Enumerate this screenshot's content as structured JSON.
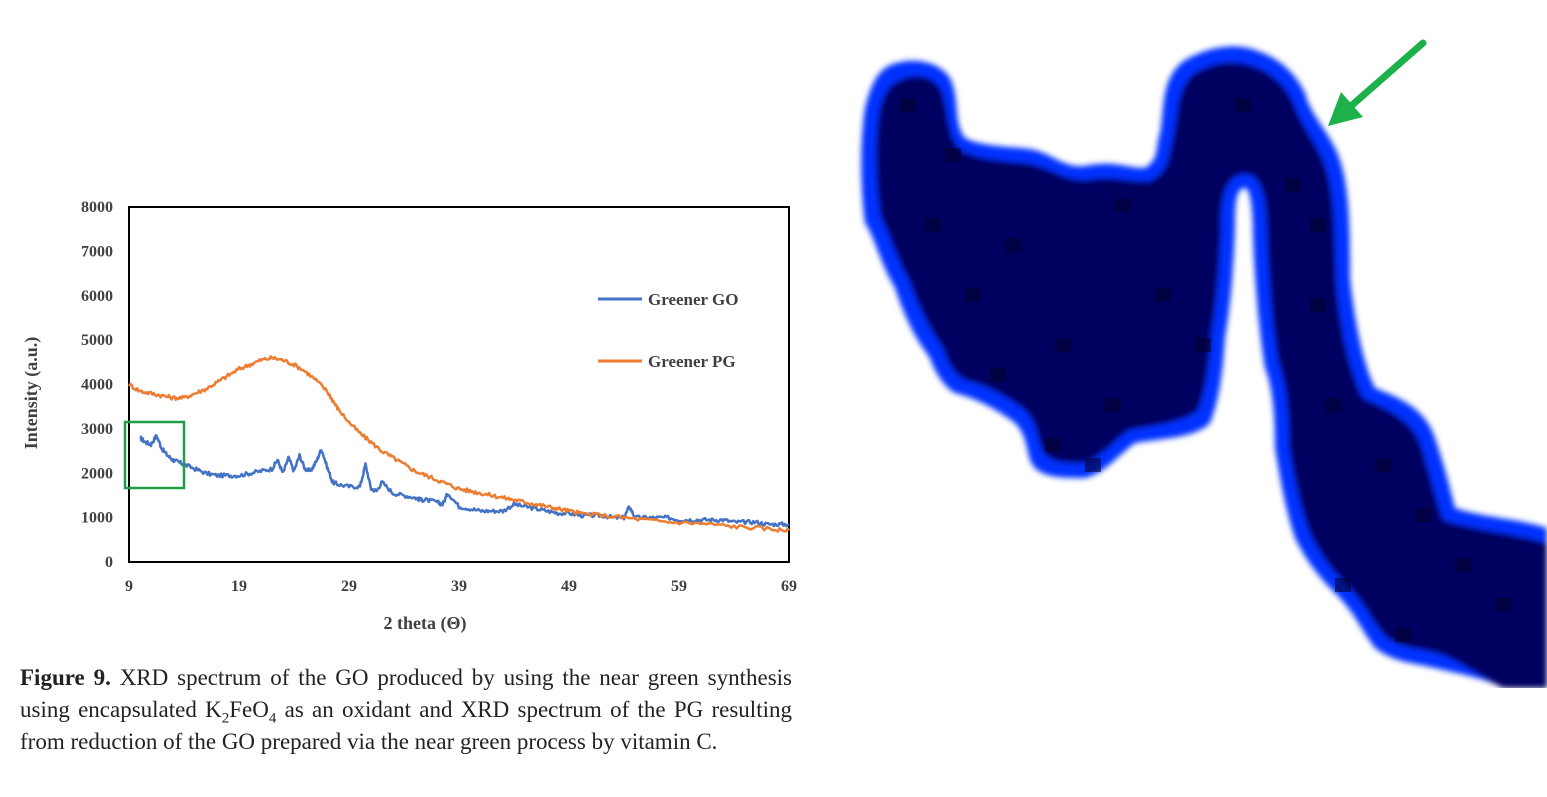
{
  "chart_data": {
    "type": "line",
    "xlabel": "2 theta (Θ)",
    "ylabel": "Intensity (a.u.)",
    "xlim": [
      9,
      69
    ],
    "ylim": [
      0,
      8000
    ],
    "x_ticks": [
      9,
      19,
      29,
      39,
      49,
      59,
      69
    ],
    "y_ticks": [
      0,
      1000,
      2000,
      3000,
      4000,
      5000,
      6000,
      7000,
      8000
    ],
    "legend_position": "right",
    "grid": false,
    "series": [
      {
        "name": "Greener GO",
        "color": "#4472C4",
        "x": [
          10,
          10.5,
          11,
          11.5,
          12,
          12.5,
          13,
          13.5,
          14,
          15,
          16,
          17,
          18,
          19,
          20,
          21,
          22,
          22.5,
          23,
          23.5,
          24,
          24.5,
          25,
          25.5,
          26,
          26.5,
          27,
          27.5,
          28,
          29,
          30,
          30.5,
          31,
          31.5,
          32,
          33,
          34,
          35,
          35.5,
          36,
          37,
          37.5,
          38,
          39,
          40,
          41,
          42,
          43,
          44,
          45,
          46,
          47,
          48,
          49,
          50,
          51,
          52,
          53,
          54,
          54.5,
          55,
          56,
          57,
          58,
          59,
          60,
          61,
          62,
          63,
          64,
          65,
          66,
          67,
          68,
          69
        ],
        "y": [
          2800,
          2700,
          2650,
          2850,
          2550,
          2400,
          2300,
          2250,
          2200,
          2100,
          2000,
          1950,
          1950,
          1950,
          2000,
          2050,
          2100,
          2300,
          2000,
          2350,
          2050,
          2400,
          2100,
          2050,
          2250,
          2550,
          2150,
          1800,
          1750,
          1700,
          1700,
          2200,
          1650,
          1600,
          1800,
          1550,
          1500,
          1450,
          1400,
          1400,
          1350,
          1300,
          1550,
          1250,
          1200,
          1150,
          1150,
          1150,
          1300,
          1250,
          1200,
          1150,
          1100,
          1100,
          1050,
          1050,
          1050,
          1000,
          1000,
          1250,
          1000,
          1000,
          1000,
          1000,
          950,
          950,
          950,
          950,
          950,
          900,
          900,
          900,
          850,
          850,
          850
        ]
      },
      {
        "name": "Greener PG",
        "color": "#ED7D31",
        "x": [
          9,
          10,
          11,
          12,
          13,
          14,
          15,
          16,
          17,
          18,
          19,
          20,
          21,
          22,
          23,
          24,
          25,
          26,
          27,
          27.5,
          28,
          29,
          30,
          31,
          32,
          33,
          34,
          35,
          36,
          37,
          38,
          39,
          40,
          41,
          42,
          43,
          44,
          45,
          46,
          47,
          48,
          49,
          50,
          52,
          54,
          56,
          58,
          60,
          62,
          64,
          66,
          68,
          69
        ],
        "y": [
          4000,
          3850,
          3800,
          3750,
          3700,
          3700,
          3800,
          3900,
          4050,
          4200,
          4350,
          4450,
          4550,
          4600,
          4550,
          4450,
          4300,
          4100,
          3850,
          3650,
          3450,
          3150,
          2900,
          2700,
          2500,
          2350,
          2200,
          2050,
          1950,
          1850,
          1750,
          1650,
          1600,
          1550,
          1500,
          1450,
          1400,
          1350,
          1300,
          1250,
          1200,
          1150,
          1100,
          1050,
          1000,
          950,
          900,
          880,
          850,
          800,
          770,
          730,
          710
        ]
      }
    ]
  },
  "annotation": {
    "color": "#1E9E4A"
  },
  "caption": {
    "label": "Figure 9.",
    "part1": " XRD spectrum of the GO produced by using the near green synthesis using encapsulated K",
    "sub1": "2",
    "part2": "FeO",
    "sub2": "4",
    "part3": " as an oxidant and XRD spectrum of the PG resulting from reduction of the GO prepared via the near green process by vitamin C."
  },
  "image": {
    "shape_color": "#000060",
    "edge_color": "#0033FF",
    "arrow_color": "#1DB14B"
  }
}
